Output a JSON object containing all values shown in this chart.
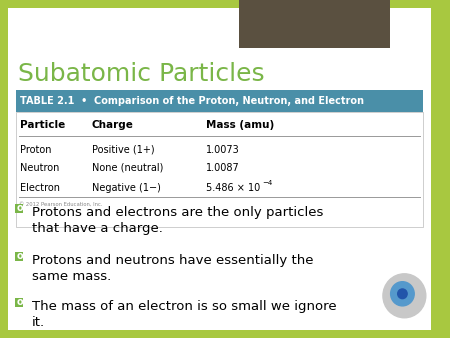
{
  "title": "Subatomic Particles",
  "title_color": "#7ab648",
  "bg_color": "#a8c840",
  "slide_bg": "#ffffff",
  "table_header_bg": "#4a8fa8",
  "table_header_text": "TABLE 2.1  •  Comparison of the Proton, Neutron, and Electron",
  "table_header_color": "#ffffff",
  "col_headers": [
    "Particle",
    "Charge",
    "Mass (amu)"
  ],
  "rows": [
    [
      "Proton",
      "Positive (1+)",
      "1.0073"
    ],
    [
      "Neutron",
      "None (neutral)",
      "1.0087"
    ],
    [
      "Electron",
      "Negative (1−)",
      "5.486 × 10"
    ]
  ],
  "electron_superscript": "−4",
  "copyright": "© 2012 Pearson Education, Inc.",
  "bullets": [
    "Protons and electrons are the only particles\nthat have a charge.",
    "Protons and neutrons have essentially the\nsame mass.",
    "The mass of an electron is so small we ignore\nit."
  ],
  "bullet_marker_color": "#7ab648",
  "bullet_text_color": "#000000",
  "dark_rect_color": "#5a5040",
  "speaker_outer": "#c8c8c8",
  "speaker_inner": "#5599cc",
  "speaker_dot": "#2255aa"
}
